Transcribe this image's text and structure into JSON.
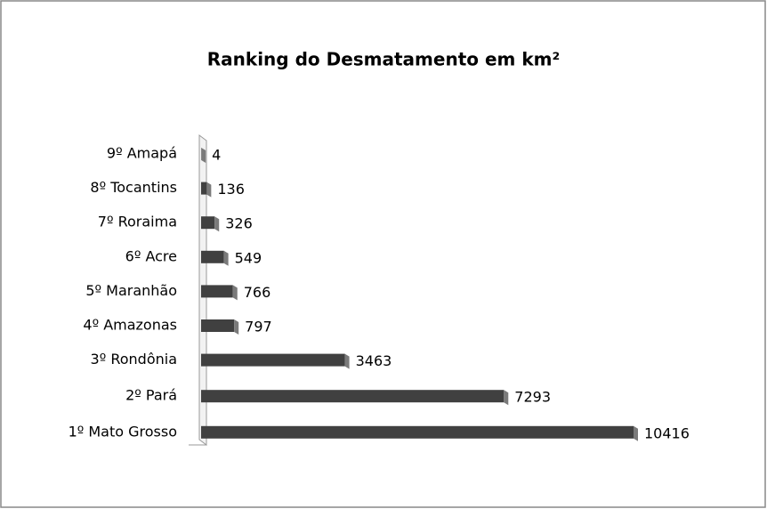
{
  "chart_data": {
    "type": "bar",
    "orientation": "horizontal",
    "title": "Ranking do Desmatamento em km²",
    "categories": [
      "9º Amapá",
      "8º Tocantins",
      "7º Roraima",
      "6º Acre",
      "5º Maranhão",
      "4º Amazonas",
      "3º Rondônia",
      "2º Pará",
      "1º Mato Grosso"
    ],
    "values": [
      4,
      136,
      326,
      549,
      766,
      797,
      3463,
      7293,
      10416
    ],
    "color": "#404040"
  }
}
